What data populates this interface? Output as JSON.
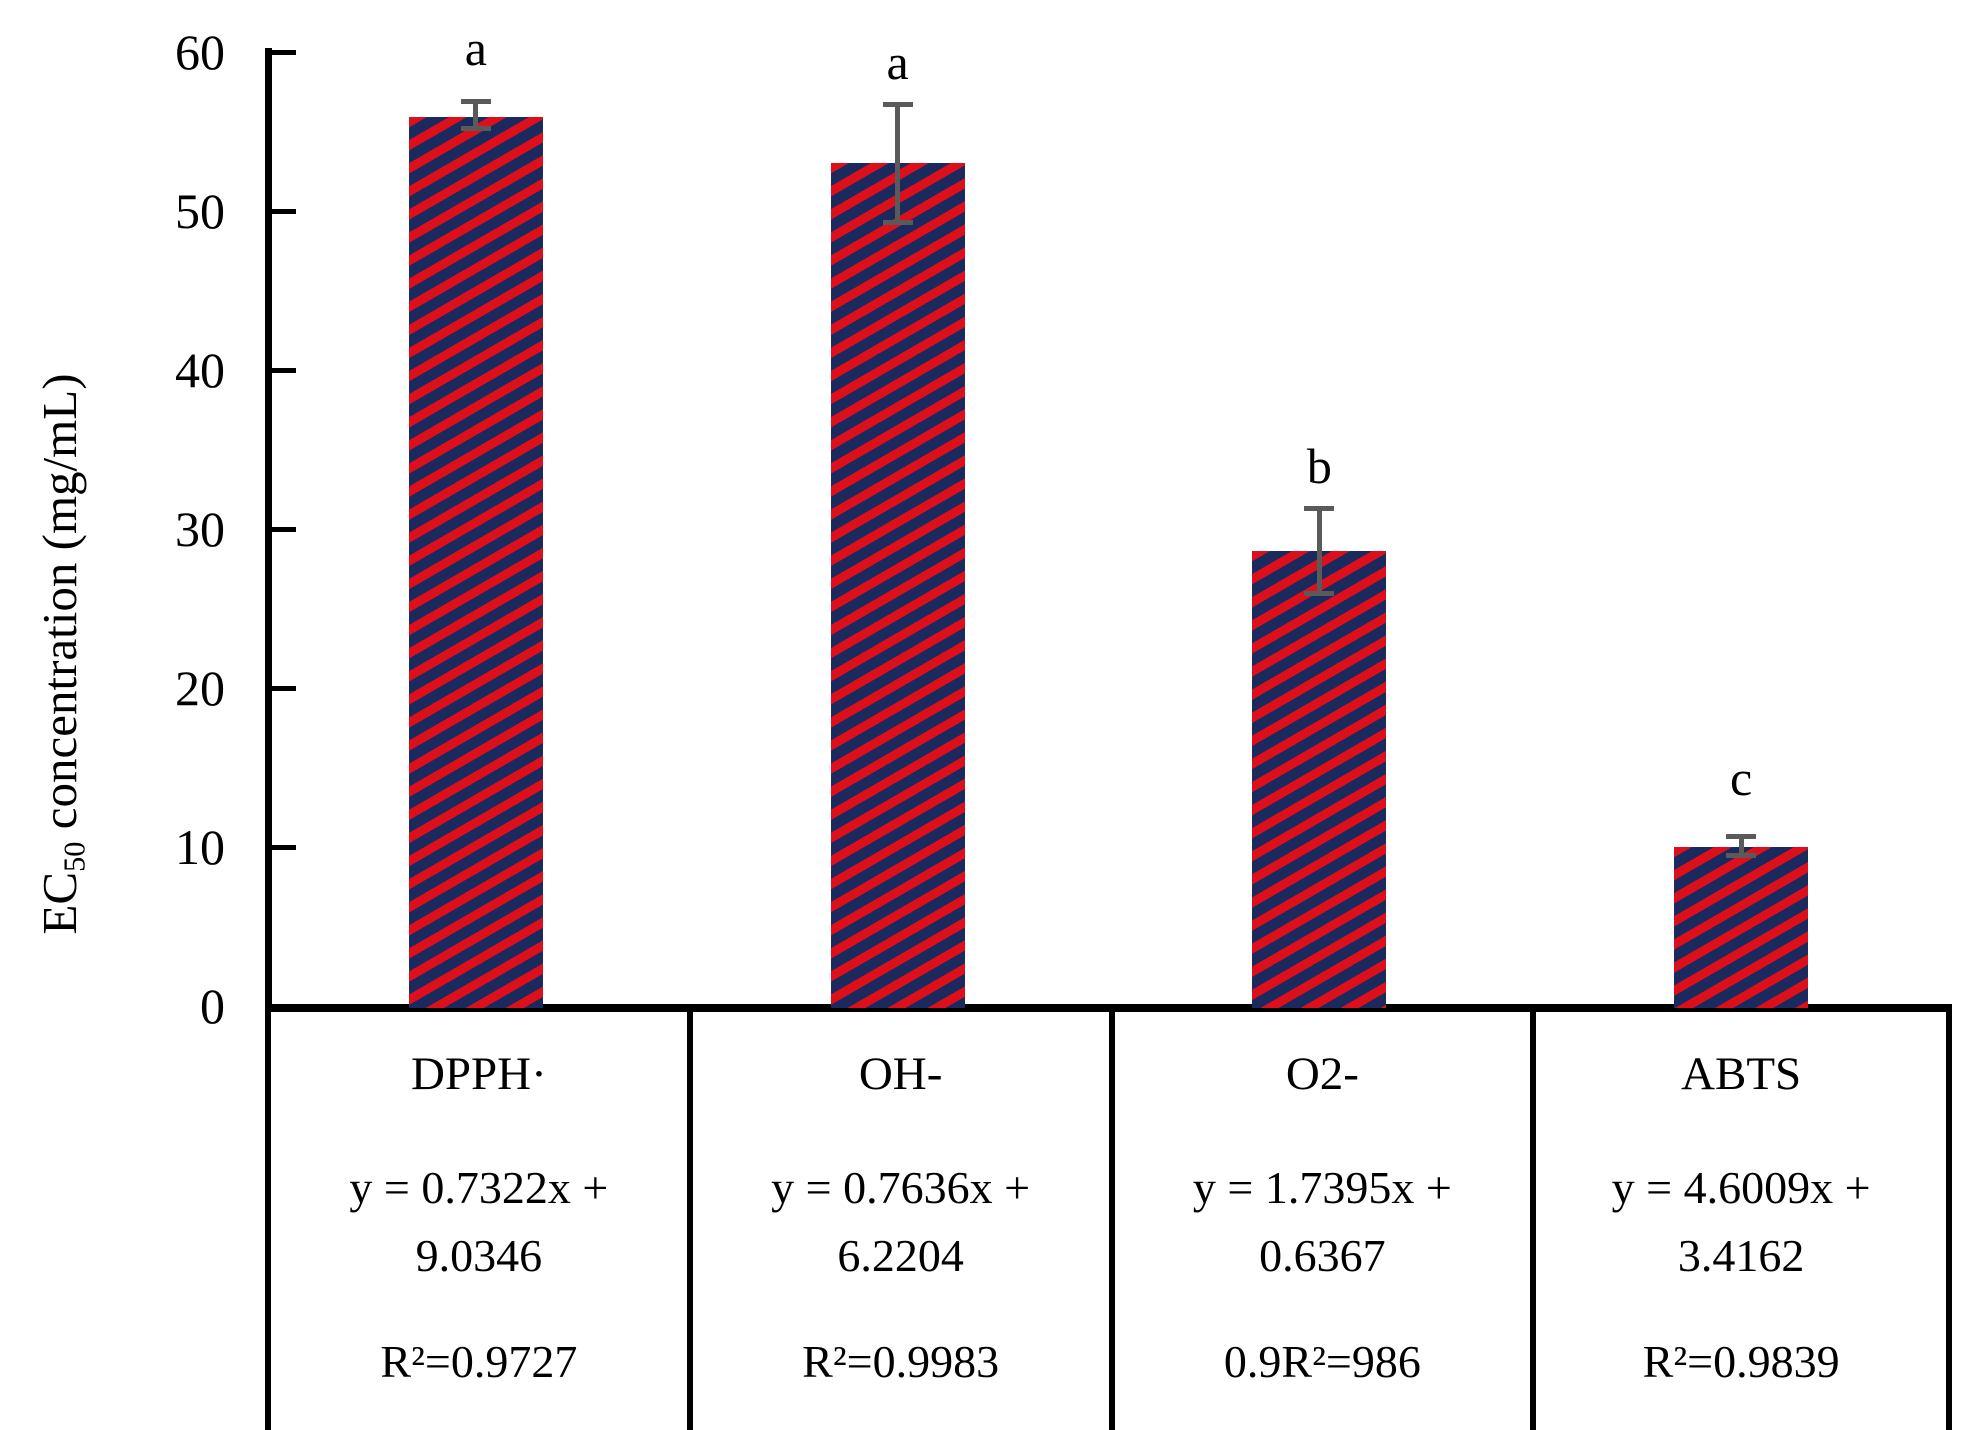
{
  "chart_data": {
    "type": "bar",
    "title": "",
    "xlabel": "",
    "ylabel": "EC50 concentration (mg/mL)",
    "ylabel_parts": {
      "prefix": "EC",
      "sub": "50",
      "suffix": " concentration (mg/mL)"
    },
    "categories": [
      "DPPH·",
      "OH-",
      "O2-",
      "ABTS"
    ],
    "values": [
      55.9,
      53.0,
      28.6,
      10.0
    ],
    "error_bars": [
      {
        "low": 55.2,
        "high": 56.9
      },
      {
        "low": 49.3,
        "high": 56.7
      },
      {
        "low": 26.0,
        "high": 31.3
      },
      {
        "low": 9.5,
        "high": 10.7
      }
    ],
    "sig_letters": [
      "a",
      "a",
      "b",
      "c"
    ],
    "yticks": [
      0,
      10,
      20,
      30,
      40,
      50,
      60
    ],
    "ylim": [
      0,
      60
    ],
    "grid": false,
    "legend": "none",
    "bar_pattern": "wide-upward-diagonal-stripes",
    "colors": {
      "bar_bg": "#1b2a5e",
      "bar_stripe": "#dc0f1a",
      "error": "#5a5a5a",
      "axis": "#000000"
    }
  },
  "table": {
    "cells": [
      {
        "label": "DPPH·",
        "eq_line1": "y = 0.7322x +",
        "eq_line2": "9.0346",
        "r2": "R²=0.9727"
      },
      {
        "label": "OH-",
        "eq_line1": "y = 0.7636x +",
        "eq_line2": "6.2204",
        "r2": "R²=0.9983"
      },
      {
        "label": "O2-",
        "eq_line1": "y = 1.7395x +",
        "eq_line2": "0.6367",
        "r2": "0.9R²=986"
      },
      {
        "label": "ABTS",
        "eq_line1": "y = 4.6009x +",
        "eq_line2": "3.4162",
        "r2": "R²=0.9839"
      }
    ]
  }
}
